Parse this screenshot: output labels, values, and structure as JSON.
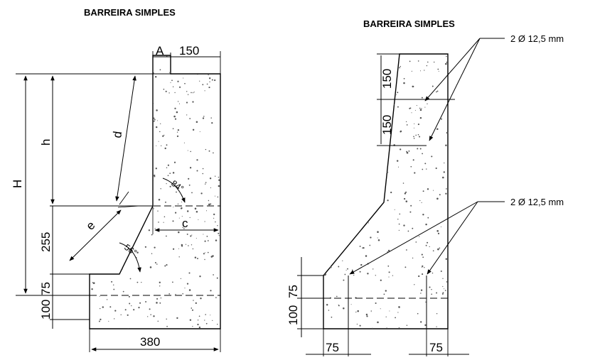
{
  "left_figure": {
    "title": "BARREIRA SIMPLES",
    "dims": {
      "top_A": "A",
      "top_width": "150",
      "total_height": "H",
      "upper_height": "h",
      "lower_height": "255",
      "toe_height": "75",
      "base_height": "100",
      "base_width": "380",
      "diag_upper": "d",
      "diag_lower": "e",
      "horiz_c": "c"
    },
    "angles": {
      "upper": "84°",
      "lower": "56°"
    }
  },
  "right_figure": {
    "title": "BARREIRA SIMPLES",
    "dims": {
      "upper_1": "150",
      "upper_2": "150",
      "toe_height": "75",
      "base_height": "100",
      "bottom_left": "75",
      "bottom_right": "75"
    },
    "rebar_upper": "2 Ø 12,5 mm",
    "rebar_lower": "2 Ø 12,5 mm"
  },
  "colors": {
    "line": "#000000",
    "concrete_dots": "#555555",
    "background": "#ffffff"
  }
}
